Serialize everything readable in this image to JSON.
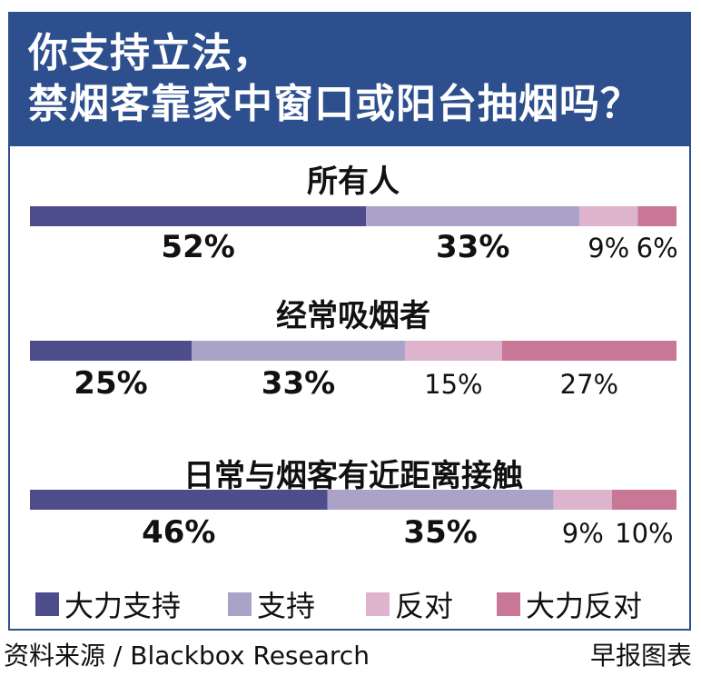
{
  "header": {
    "title_line_1": "你支持立法，",
    "title_line_2": "禁烟客靠家中窗口或阳台抽烟吗？"
  },
  "colors": {
    "header_bg": "#2d4f8e",
    "strong_support": "#4e4d8c",
    "support": "#aba3c7",
    "oppose": "#ddb3cd",
    "strong_oppose": "#c97797"
  },
  "chart_data": {
    "type": "bar",
    "orientation": "horizontal-stacked-100",
    "series_names": [
      "大力支持",
      "支持",
      "反对",
      "大力反对"
    ],
    "groups": [
      {
        "title": "所有人",
        "values": [
          52,
          33,
          9,
          6
        ],
        "labels": [
          "52%",
          "33%",
          "9%",
          "6%"
        ]
      },
      {
        "title": "经常吸烟者",
        "values": [
          25,
          33,
          15,
          27
        ],
        "labels": [
          "25%",
          "33%",
          "15%",
          "27%"
        ]
      },
      {
        "title": "日常与烟客有近距离接触",
        "values": [
          46,
          35,
          9,
          10
        ],
        "labels": [
          "46%",
          "35%",
          "9%",
          "10%"
        ]
      }
    ],
    "legend_position": "bottom"
  },
  "legend": {
    "items": [
      {
        "label": "大力支持",
        "color": "#4e4d8c"
      },
      {
        "label": "支持",
        "color": "#aba3c7"
      },
      {
        "label": "反对",
        "color": "#ddb3cd"
      },
      {
        "label": "大力反对",
        "color": "#c97797"
      }
    ]
  },
  "footer": {
    "source": "资料来源 / Blackbox Research",
    "credit": "早报图表"
  }
}
